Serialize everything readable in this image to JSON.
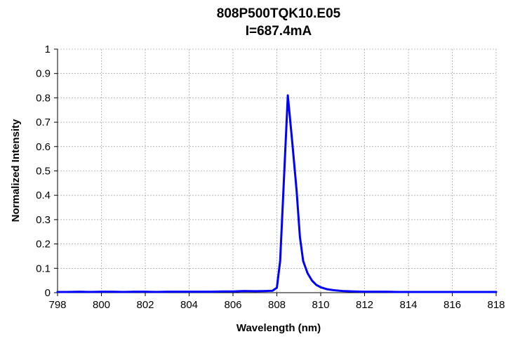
{
  "chart_data": {
    "type": "line",
    "title": "808P500TQK10.E05",
    "subtitle": "I=687.4mA",
    "xlabel": "Wavelength (nm)",
    "ylabel": "Normalized Intensity",
    "xlim": [
      798,
      818
    ],
    "ylim": [
      0,
      1
    ],
    "x_ticks": [
      "798",
      "800",
      "802",
      "804",
      "806",
      "808",
      "810",
      "812",
      "814",
      "816",
      "818"
    ],
    "y_ticks": [
      "0",
      "0.1",
      "0.2",
      "0.3",
      "0.4",
      "0.5",
      "0.6",
      "0.7",
      "0.8",
      "0.9",
      "1"
    ],
    "grid": true,
    "legend": "none",
    "series": [
      {
        "color": "#0000ff",
        "points": [
          [
            798.0,
            0.003
          ],
          [
            798.5,
            0.003
          ],
          [
            799.0,
            0.004
          ],
          [
            799.5,
            0.003
          ],
          [
            800.0,
            0.004
          ],
          [
            800.5,
            0.004
          ],
          [
            801.0,
            0.003
          ],
          [
            801.5,
            0.004
          ],
          [
            802.0,
            0.004
          ],
          [
            802.5,
            0.003
          ],
          [
            803.0,
            0.004
          ],
          [
            803.5,
            0.004
          ],
          [
            804.0,
            0.004
          ],
          [
            804.5,
            0.004
          ],
          [
            805.0,
            0.004
          ],
          [
            805.5,
            0.005
          ],
          [
            806.0,
            0.005
          ],
          [
            806.5,
            0.007
          ],
          [
            807.0,
            0.006
          ],
          [
            807.5,
            0.007
          ],
          [
            807.8,
            0.008
          ],
          [
            808.0,
            0.02
          ],
          [
            808.15,
            0.13
          ],
          [
            808.3,
            0.42
          ],
          [
            808.5,
            0.81
          ],
          [
            808.7,
            0.62
          ],
          [
            808.9,
            0.42
          ],
          [
            809.05,
            0.23
          ],
          [
            809.2,
            0.13
          ],
          [
            809.4,
            0.08
          ],
          [
            809.6,
            0.05
          ],
          [
            809.8,
            0.032
          ],
          [
            810.0,
            0.022
          ],
          [
            810.3,
            0.014
          ],
          [
            810.6,
            0.01
          ],
          [
            811.0,
            0.007
          ],
          [
            811.5,
            0.005
          ],
          [
            812.0,
            0.004
          ],
          [
            812.5,
            0.004
          ],
          [
            813.0,
            0.004
          ],
          [
            813.5,
            0.003
          ],
          [
            814.0,
            0.003
          ],
          [
            814.5,
            0.003
          ],
          [
            815.0,
            0.003
          ],
          [
            815.5,
            0.003
          ],
          [
            816.0,
            0.003
          ],
          [
            816.5,
            0.003
          ],
          [
            817.0,
            0.003
          ],
          [
            817.5,
            0.003
          ],
          [
            818.0,
            0.003
          ]
        ]
      }
    ]
  }
}
